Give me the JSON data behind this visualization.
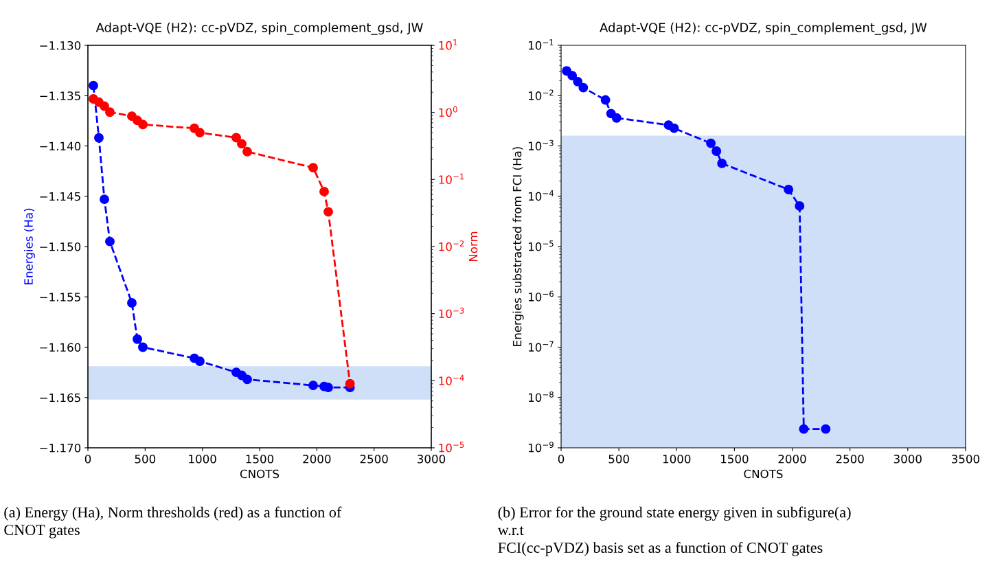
{
  "chart_data": [
    {
      "type": "line",
      "title": "Adapt-VQE (H2): cc-pVDZ, spin_complement_gsd, JW",
      "xlabel": "CNOTS",
      "ylabel": "Energies (Ha)",
      "y2label": "Norm",
      "x": [
        48,
        96,
        144,
        192,
        384,
        432,
        480,
        930,
        978,
        1296,
        1344,
        1392,
        1968,
        2064,
        2100,
        2290
      ],
      "series": [
        {
          "color": "#0000ff",
          "axis": "y",
          "values": [
            -1.134,
            -1.1392,
            -1.1453,
            -1.1495,
            -1.1556,
            -1.1592,
            -1.16,
            -1.1611,
            -1.1614,
            -1.1625,
            -1.1628,
            -1.1632,
            -1.1638,
            -1.1639,
            -1.164,
            -1.164
          ]
        },
        {
          "color": "#ff0000",
          "axis": "y2",
          "values": [
            1.59,
            1.42,
            1.24,
            1.01,
            0.88,
            0.76,
            0.66,
            0.58,
            0.5,
            0.42,
            0.34,
            0.26,
            0.15,
            0.066,
            0.033,
            9e-05
          ]
        }
      ],
      "marker": "circle",
      "line_style": "dashed",
      "log": "y2",
      "grid": false,
      "xlim": [
        0,
        3000
      ],
      "xticks": [
        0,
        500,
        1000,
        1500,
        2000,
        2500,
        3000
      ],
      "ylim": [
        -1.17,
        -1.13
      ],
      "yticks": [
        {
          "value": -1.17,
          "label": "−1.170"
        },
        {
          "value": -1.165,
          "label": "−1.165"
        },
        {
          "value": -1.16,
          "label": "−1.160"
        },
        {
          "value": -1.155,
          "label": "−1.155"
        },
        {
          "value": -1.15,
          "label": "−1.150"
        },
        {
          "value": -1.145,
          "label": "−1.145"
        },
        {
          "value": -1.14,
          "label": "−1.140"
        },
        {
          "value": -1.135,
          "label": "−1.135"
        },
        {
          "value": -1.13,
          "label": "−1.130"
        }
      ],
      "y2lim": [
        1e-05,
        10
      ],
      "y2ticks": [
        {
          "value": 1e-05,
          "label": "10$^{−5}$"
        },
        {
          "value": 0.0001,
          "label": "10$^{−4}$"
        },
        {
          "value": 0.001,
          "label": "10$^{−3}$"
        },
        {
          "value": 0.01,
          "label": "10$^{−2}$"
        },
        {
          "value": 0.1,
          "label": "10$^{−1}$"
        },
        {
          "value": 1,
          "label": "10$^{0}$"
        },
        {
          "value": 10,
          "label": "10$^{1}$"
        }
      ],
      "bands": [
        {
          "axis": "y",
          "from": -1.1652,
          "to": -1.1619,
          "color": "#cedff7"
        }
      ],
      "annotations": [
        "(a) Energy (Ha), Norm thresholds (red) as a function of\nCNOT gates"
      ]
    },
    {
      "type": "line",
      "title": "Adapt-VQE (H2): cc-pVDZ, spin_complement_gsd, JW",
      "xlabel": "CNOTS",
      "ylabel": "Energies substracted from FCI (Ha)",
      "x": [
        48,
        96,
        144,
        192,
        384,
        432,
        480,
        930,
        978,
        1296,
        1344,
        1392,
        1968,
        2064,
        2100,
        2290
      ],
      "series": [
        {
          "color": "#0000ff",
          "values": [
            0.031,
            0.025,
            0.019,
            0.0144,
            0.0082,
            0.0044,
            0.0036,
            0.0026,
            0.00225,
            0.00113,
            0.00079,
            0.00045,
            0.000136,
            6.4e-05,
            2.36e-09,
            2.36e-09
          ]
        }
      ],
      "marker": "circle",
      "line_style": "dashed",
      "log": "y",
      "grid": false,
      "xlim": [
        0,
        3500
      ],
      "xticks": [
        0,
        500,
        1000,
        1500,
        2000,
        2500,
        3000,
        3500
      ],
      "ylim": [
        1e-09,
        0.1
      ],
      "yticks": [
        {
          "value": 1e-09,
          "label": "10$^{−9}$"
        },
        {
          "value": 1e-08,
          "label": "10$^{−8}$"
        },
        {
          "value": 1e-07,
          "label": "10$^{−7}$"
        },
        {
          "value": 1e-06,
          "label": "10$^{−6}$"
        },
        {
          "value": 1e-05,
          "label": "10$^{−5}$"
        },
        {
          "value": 0.0001,
          "label": "10$^{−4}$"
        },
        {
          "value": 0.001,
          "label": "10$^{−3}$"
        },
        {
          "value": 0.01,
          "label": "10$^{−2}$"
        },
        {
          "value": 0.1,
          "label": "10$^{−1}$"
        }
      ],
      "bands": [
        {
          "axis": "y",
          "from": 1e-09,
          "to": 0.0016,
          "color": "#cedff7"
        }
      ],
      "annotations": [
        "(b) Error for the ground state energy given in subfigure(a)\nw.r.t\nFCI(cc-pVDZ) basis set as a function of CNOT gates"
      ]
    }
  ]
}
